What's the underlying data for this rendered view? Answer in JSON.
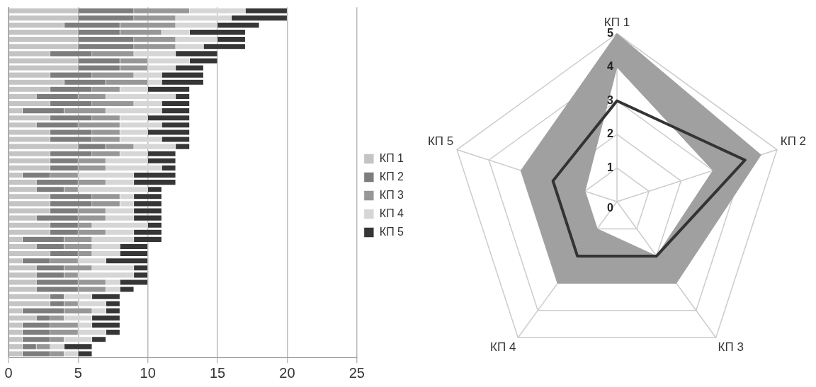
{
  "chart_data": [
    {
      "type": "bar",
      "orientation": "horizontal",
      "stacked": true,
      "categories": [
        null,
        null,
        null,
        null,
        null,
        null,
        null,
        null,
        null,
        null,
        null,
        null,
        null,
        null,
        null,
        null,
        null,
        null,
        null,
        null,
        null,
        null,
        null,
        null,
        null,
        null,
        null,
        null,
        null,
        null,
        null,
        null,
        null,
        null,
        null,
        null,
        null,
        null,
        null,
        null,
        null,
        null,
        null,
        null,
        null,
        null,
        null,
        null,
        null
      ],
      "series": [
        {
          "name": "КП 1",
          "color": "#c4c4c4",
          "values": [
            5,
            5,
            4,
            5,
            5,
            5,
            3,
            5,
            5,
            3,
            4,
            3,
            2,
            3,
            1,
            3,
            2,
            3,
            3,
            5,
            3,
            3,
            3,
            1,
            2,
            2,
            3,
            3,
            3,
            2,
            3,
            3,
            1,
            2,
            3,
            1,
            2,
            2,
            2,
            2,
            3,
            3,
            1,
            2,
            1,
            1,
            1,
            1,
            1
          ]
        },
        {
          "name": "КП 2",
          "color": "#7d7d7d",
          "values": [
            4,
            4,
            4,
            3,
            4,
            4,
            3,
            3,
            3,
            3,
            3,
            3,
            3,
            3,
            3,
            3,
            3,
            3,
            3,
            2,
            3,
            2,
            2,
            2,
            3,
            2,
            3,
            3,
            2,
            3,
            2,
            2,
            3,
            2,
            2,
            2,
            2,
            2,
            3,
            3,
            1,
            1,
            3,
            1,
            2,
            2,
            2,
            1,
            2
          ]
        },
        {
          "name": "КП 3",
          "color": "#979797",
          "values": [
            4,
            3,
            4,
            3,
            3,
            3,
            3,
            2,
            2,
            3,
            3,
            2,
            2,
            3,
            3,
            2,
            3,
            2,
            2,
            2,
            2,
            2,
            2,
            2,
            2,
            1,
            2,
            2,
            2,
            2,
            1,
            2,
            2,
            2,
            1,
            2,
            2,
            1,
            2,
            2,
            0,
            1,
            2,
            1,
            2,
            2,
            1,
            1,
            1
          ]
        },
        {
          "name": "КП 4",
          "color": "#d6d6d6",
          "values": [
            4,
            4,
            3,
            2,
            3,
            2,
            3,
            3,
            2,
            2,
            1,
            2,
            5,
            2,
            4,
            2,
            3,
            2,
            3,
            3,
            2,
            3,
            4,
            4,
            2,
            5,
            1,
            1,
            2,
            2,
            4,
            2,
            3,
            2,
            2,
            2,
            3,
            4,
            1,
            1,
            2,
            2,
            1,
            2,
            1,
            2,
            2,
            1,
            1
          ]
        },
        {
          "name": "КП 5",
          "color": "#363636",
          "values": [
            3,
            4,
            3,
            4,
            2,
            3,
            3,
            2,
            2,
            3,
            3,
            3,
            1,
            2,
            2,
            3,
            2,
            3,
            2,
            1,
            2,
            2,
            1,
            3,
            3,
            1,
            2,
            2,
            2,
            2,
            1,
            2,
            2,
            2,
            2,
            3,
            1,
            1,
            2,
            1,
            2,
            1,
            1,
            2,
            2,
            1,
            1,
            2,
            1
          ]
        }
      ],
      "xlim": [
        0,
        25
      ],
      "xticks": [
        0,
        5,
        10,
        15,
        20,
        25
      ],
      "grid": "x",
      "legend": "right"
    },
    {
      "type": "radar",
      "categories": [
        "КП 1",
        "КП 2",
        "КП 3",
        "КП 4",
        "КП 5"
      ],
      "series": [
        {
          "color": "#a0a0a0",
          "values": [
            5,
            4.5,
            3,
            3,
            3
          ]
        },
        {
          "color": "#a0a0a0",
          "values": [
            4,
            3,
            2,
            1,
            1
          ]
        },
        {
          "color": "#333333",
          "values": [
            3,
            4,
            2,
            2,
            2
          ]
        }
      ],
      "ylim": [
        0,
        5
      ],
      "yticks": [
        0,
        1,
        2,
        3,
        4,
        5
      ],
      "grid": true,
      "marker": "none"
    }
  ]
}
